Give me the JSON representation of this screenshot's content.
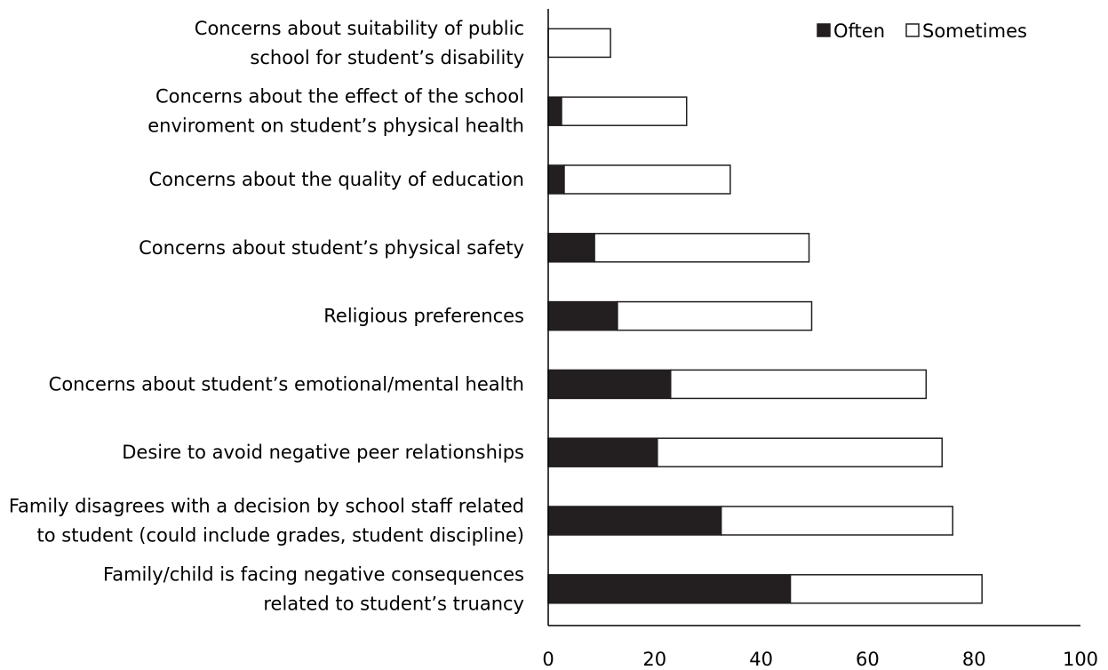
{
  "chart_data": {
    "type": "bar",
    "orientation": "horizontal",
    "stacked": true,
    "title": "",
    "xlabel": "",
    "ylabel": "",
    "xlim": [
      0,
      100
    ],
    "xticks": [
      "0",
      "20",
      "40",
      "60",
      "80",
      "100"
    ],
    "grid": false,
    "legend_position": "top-right",
    "categories": [
      [
        "Concerns about suitability of public",
        "school for student’s disability"
      ],
      [
        "Concerns about the effect of the school",
        "enviroment on student’s physical health"
      ],
      [
        "Concerns about the quality of education"
      ],
      [
        "Concerns about student’s physical safety"
      ],
      [
        "Religious preferences"
      ],
      [
        "Concerns about student’s emotional/mental health"
      ],
      [
        "Desire to avoid negative peer relationships"
      ],
      [
        "Family disagrees with a decision by school staff related",
        "to student (could include grades, student discipline)"
      ],
      [
        "Family/child is facing negative consequences",
        "related to student’s truancy"
      ]
    ],
    "series": [
      {
        "name": "Often",
        "color": "#231f20",
        "values": [
          0,
          2.5,
          3,
          8.7,
          13,
          23,
          20.5,
          32.5,
          45.5
        ]
      },
      {
        "name": "Sometimes",
        "color": "#ffffff",
        "values": [
          11.7,
          23.5,
          31.2,
          40.3,
          36.5,
          48,
          53.5,
          43.5,
          36
        ]
      }
    ]
  }
}
